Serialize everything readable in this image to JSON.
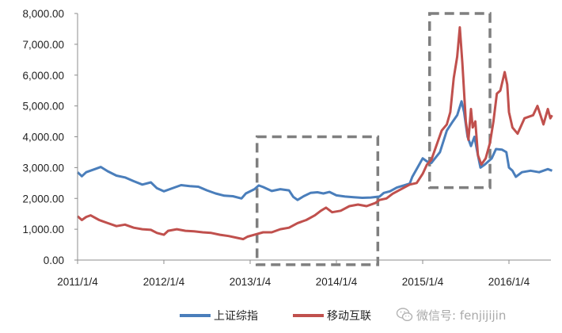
{
  "chart_data": {
    "type": "line",
    "ylim": [
      0,
      8000
    ],
    "y_ticks": [
      "0.00",
      "1,000.00",
      "2,000.00",
      "3,000.00",
      "4,000.00",
      "5,000.00",
      "6,000.00",
      "7,000.00",
      "8,000.00"
    ],
    "x_ticks": [
      "2011/1/4",
      "2012/1/4",
      "2013/1/4",
      "2014/1/4",
      "2015/1/4",
      "2016/1/4"
    ],
    "grid": false,
    "legend_position": "bottom",
    "series": [
      {
        "name": "上证综指",
        "color": "#4a7ebb",
        "points": [
          [
            2011.0,
            2850
          ],
          [
            2011.05,
            2720
          ],
          [
            2011.1,
            2850
          ],
          [
            2011.2,
            2950
          ],
          [
            2011.27,
            3020
          ],
          [
            2011.35,
            2880
          ],
          [
            2011.45,
            2740
          ],
          [
            2011.55,
            2680
          ],
          [
            2011.65,
            2560
          ],
          [
            2011.75,
            2450
          ],
          [
            2011.85,
            2520
          ],
          [
            2011.92,
            2330
          ],
          [
            2012.0,
            2230
          ],
          [
            2012.1,
            2330
          ],
          [
            2012.2,
            2430
          ],
          [
            2012.3,
            2400
          ],
          [
            2012.4,
            2380
          ],
          [
            2012.5,
            2260
          ],
          [
            2012.6,
            2160
          ],
          [
            2012.7,
            2090
          ],
          [
            2012.8,
            2070
          ],
          [
            2012.9,
            2000
          ],
          [
            2012.95,
            2160
          ],
          [
            2013.05,
            2300
          ],
          [
            2013.1,
            2420
          ],
          [
            2013.15,
            2370
          ],
          [
            2013.25,
            2240
          ],
          [
            2013.35,
            2300
          ],
          [
            2013.45,
            2260
          ],
          [
            2013.5,
            2050
          ],
          [
            2013.55,
            1950
          ],
          [
            2013.62,
            2070
          ],
          [
            2013.7,
            2180
          ],
          [
            2013.78,
            2200
          ],
          [
            2013.85,
            2160
          ],
          [
            2013.92,
            2210
          ],
          [
            2014.0,
            2100
          ],
          [
            2014.1,
            2060
          ],
          [
            2014.2,
            2040
          ],
          [
            2014.3,
            2020
          ],
          [
            2014.4,
            2030
          ],
          [
            2014.5,
            2060
          ],
          [
            2014.55,
            2180
          ],
          [
            2014.62,
            2230
          ],
          [
            2014.7,
            2350
          ],
          [
            2014.78,
            2420
          ],
          [
            2014.85,
            2480
          ],
          [
            2014.88,
            2700
          ],
          [
            2014.95,
            3050
          ],
          [
            2015.0,
            3300
          ],
          [
            2015.05,
            3200
          ],
          [
            2015.1,
            3150
          ],
          [
            2015.2,
            3500
          ],
          [
            2015.28,
            4200
          ],
          [
            2015.35,
            4500
          ],
          [
            2015.4,
            4700
          ],
          [
            2015.45,
            5150
          ],
          [
            2015.48,
            4800
          ],
          [
            2015.52,
            4000
          ],
          [
            2015.56,
            3700
          ],
          [
            2015.6,
            4000
          ],
          [
            2015.64,
            3400
          ],
          [
            2015.67,
            3000
          ],
          [
            2015.72,
            3100
          ],
          [
            2015.8,
            3300
          ],
          [
            2015.85,
            3600
          ],
          [
            2015.92,
            3580
          ],
          [
            2015.97,
            3500
          ],
          [
            2016.0,
            3000
          ],
          [
            2016.04,
            2900
          ],
          [
            2016.08,
            2700
          ],
          [
            2016.15,
            2850
          ],
          [
            2016.25,
            2900
          ],
          [
            2016.35,
            2850
          ],
          [
            2016.45,
            2950
          ],
          [
            2016.5,
            2900
          ]
        ]
      },
      {
        "name": "移动互联",
        "color": "#c0504d",
        "points": [
          [
            2011.0,
            1420
          ],
          [
            2011.05,
            1300
          ],
          [
            2011.1,
            1400
          ],
          [
            2011.15,
            1450
          ],
          [
            2011.25,
            1300
          ],
          [
            2011.35,
            1200
          ],
          [
            2011.45,
            1100
          ],
          [
            2011.55,
            1150
          ],
          [
            2011.65,
            1050
          ],
          [
            2011.75,
            1000
          ],
          [
            2011.85,
            980
          ],
          [
            2011.92,
            880
          ],
          [
            2012.0,
            820
          ],
          [
            2012.05,
            950
          ],
          [
            2012.15,
            1000
          ],
          [
            2012.25,
            950
          ],
          [
            2012.35,
            930
          ],
          [
            2012.45,
            900
          ],
          [
            2012.55,
            880
          ],
          [
            2012.65,
            820
          ],
          [
            2012.75,
            780
          ],
          [
            2012.85,
            720
          ],
          [
            2012.92,
            680
          ],
          [
            2012.97,
            760
          ],
          [
            2013.05,
            820
          ],
          [
            2013.15,
            900
          ],
          [
            2013.25,
            900
          ],
          [
            2013.35,
            1000
          ],
          [
            2013.45,
            1050
          ],
          [
            2013.55,
            1200
          ],
          [
            2013.65,
            1300
          ],
          [
            2013.75,
            1450
          ],
          [
            2013.82,
            1600
          ],
          [
            2013.88,
            1700
          ],
          [
            2013.95,
            1550
          ],
          [
            2014.05,
            1600
          ],
          [
            2014.15,
            1750
          ],
          [
            2014.25,
            1800
          ],
          [
            2014.35,
            1750
          ],
          [
            2014.45,
            1850
          ],
          [
            2014.5,
            1950
          ],
          [
            2014.58,
            2000
          ],
          [
            2014.65,
            2150
          ],
          [
            2014.75,
            2300
          ],
          [
            2014.85,
            2450
          ],
          [
            2014.93,
            2500
          ],
          [
            2015.0,
            2800
          ],
          [
            2015.05,
            3100
          ],
          [
            2015.1,
            3250
          ],
          [
            2015.17,
            3800
          ],
          [
            2015.22,
            4200
          ],
          [
            2015.28,
            4400
          ],
          [
            2015.32,
            4800
          ],
          [
            2015.36,
            5900
          ],
          [
            2015.4,
            6600
          ],
          [
            2015.43,
            7550
          ],
          [
            2015.46,
            6400
          ],
          [
            2015.5,
            4500
          ],
          [
            2015.53,
            3900
          ],
          [
            2015.56,
            4900
          ],
          [
            2015.58,
            4300
          ],
          [
            2015.61,
            4500
          ],
          [
            2015.64,
            3400
          ],
          [
            2015.68,
            3100
          ],
          [
            2015.73,
            3300
          ],
          [
            2015.78,
            3800
          ],
          [
            2015.82,
            4500
          ],
          [
            2015.86,
            5400
          ],
          [
            2015.9,
            5500
          ],
          [
            2015.95,
            6100
          ],
          [
            2015.98,
            5700
          ],
          [
            2016.0,
            4800
          ],
          [
            2016.04,
            4300
          ],
          [
            2016.1,
            4100
          ],
          [
            2016.18,
            4600
          ],
          [
            2016.28,
            4700
          ],
          [
            2016.33,
            5000
          ],
          [
            2016.4,
            4400
          ],
          [
            2016.45,
            4900
          ],
          [
            2016.48,
            4600
          ],
          [
            2016.5,
            4700
          ]
        ]
      }
    ],
    "highlight_boxes": [
      {
        "x_range": [
          2013.08,
          2014.48
        ],
        "y_range": [
          -150,
          4000
        ]
      },
      {
        "x_range": [
          2015.08,
          2015.78
        ],
        "y_range": [
          2350,
          8000
        ]
      }
    ]
  },
  "watermark": {
    "text": "微信号: fenjijijin",
    "icon": "wechat-icon"
  }
}
